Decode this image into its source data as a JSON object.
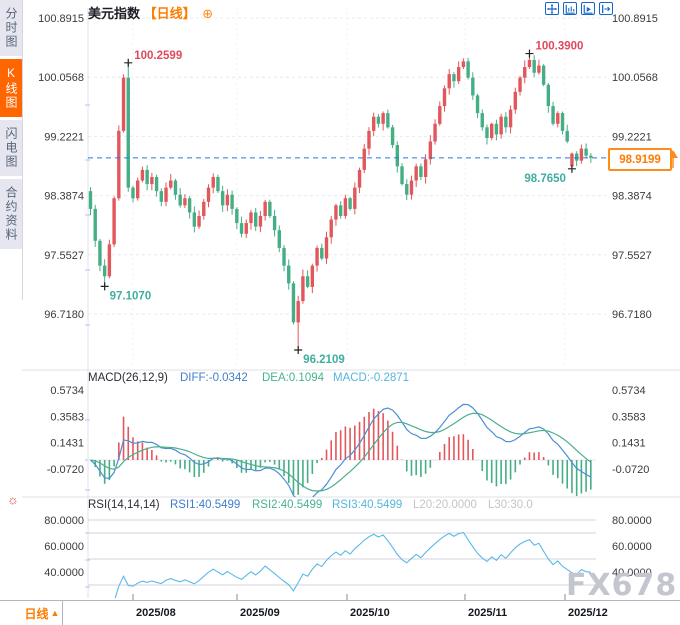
{
  "window": {
    "title": "美元指数",
    "period": "日线"
  },
  "sidebar": {
    "items": [
      {
        "label": "分时图",
        "active": false
      },
      {
        "label": "K线图",
        "active": true
      },
      {
        "label": "闪电图",
        "active": false
      },
      {
        "label": "合约资料",
        "active": false
      }
    ]
  },
  "header": {
    "title": "美元指数",
    "period_tag": "【日线】",
    "plus_icon": "⊕"
  },
  "toolbar": {
    "icons": [
      "move-crosshair-icon",
      "fit-horizontal-icon",
      "auto-scroll-icon",
      "shift-right-icon"
    ]
  },
  "price_box": {
    "value": "98.9199"
  },
  "macd": {
    "name": "MACD(26,12,9)",
    "diff_label": "DIFF:-0.0342",
    "dea_label": "DEA:0.1094",
    "macd_label": "MACD:-0.2871"
  },
  "rsi": {
    "name": "RSI(14,14,14)",
    "rsi1_label": "RSI1:40.5499",
    "rsi2_label": "RSI2:40.5499",
    "rsi3_label": "RSI3:40.5499",
    "l20_label": "L20:20.0000",
    "l30_label": "L30:30.0"
  },
  "bottom": {
    "period_tab": "日线",
    "period_arrow": "▲"
  },
  "watermark": "FX678",
  "colors": {
    "up": "#e2575c",
    "down": "#46ae85",
    "accent_orange": "#ff7a00",
    "diff_blue": "#4a8fd4",
    "dea_green": "#4cae8e",
    "rsi_cyan": "#59b9e8",
    "dashed_line_blue": "#2079e0",
    "annotation_red": "#e0485c",
    "annotation_teal": "#3fae9f"
  },
  "chart_data": {
    "type": "candlestick",
    "title": "美元指数",
    "period": "日线",
    "x_axis": {
      "labels": [
        "2025/08",
        "2025/09",
        "2025/10",
        "2025/11",
        "2025/12"
      ]
    },
    "price_axis": {
      "tick_labels": [
        "100.8915",
        "100.0568",
        "99.2221",
        "98.3874",
        "97.5527",
        "96.7180"
      ],
      "tick_values": [
        100.8915,
        100.0568,
        99.2221,
        98.3874,
        97.5527,
        96.718
      ]
    },
    "last_price": 98.9199,
    "last_price_label": "98.9199",
    "series": {
      "first_open": 98.45,
      "closes": [
        98.2,
        97.75,
        97.4,
        97.25,
        97.7,
        98.35,
        99.3,
        100.05,
        98.5,
        98.35,
        98.6,
        98.75,
        98.55,
        98.65,
        98.45,
        98.3,
        98.5,
        98.6,
        98.4,
        98.25,
        98.35,
        98.15,
        97.95,
        98.1,
        98.3,
        98.5,
        98.65,
        98.45,
        98.25,
        98.4,
        98.2,
        98.0,
        97.85,
        98.0,
        98.15,
        97.95,
        98.1,
        98.3,
        98.1,
        97.9,
        97.65,
        97.4,
        97.15,
        96.6,
        96.9,
        97.25,
        97.1,
        97.4,
        97.65,
        97.5,
        97.8,
        98.05,
        98.25,
        98.1,
        98.35,
        98.2,
        98.5,
        98.75,
        99.05,
        99.3,
        99.5,
        99.4,
        99.55,
        99.35,
        99.1,
        98.8,
        98.55,
        98.4,
        98.6,
        98.8,
        98.65,
        98.9,
        99.15,
        99.4,
        99.65,
        99.9,
        100.1,
        100.0,
        100.2,
        100.28,
        100.05,
        99.8,
        99.55,
        99.35,
        99.2,
        99.4,
        99.25,
        99.5,
        99.35,
        99.6,
        99.85,
        100.05,
        100.2,
        100.3,
        100.12,
        100.22,
        99.95,
        99.65,
        99.4,
        99.55,
        99.3,
        99.15,
        98.98,
        98.88,
        99.05,
        98.95,
        98.92
      ],
      "open_overrides": [
        {
          "i": 102,
          "open": 98.8
        }
      ],
      "wick_overrides": [
        {
          "i": 3,
          "low": 97.107
        },
        {
          "i": 8,
          "high": 100.2599
        },
        {
          "i": 44,
          "low": 96.2109
        },
        {
          "i": 93,
          "high": 100.39
        },
        {
          "i": 102,
          "low": 98.765
        }
      ]
    },
    "annotations": [
      {
        "label": "100.2599",
        "value": 100.2599,
        "index": 8,
        "kind": "high",
        "placement": "above-right"
      },
      {
        "label": "100.3900",
        "value": 100.39,
        "index": 93,
        "kind": "high",
        "placement": "above-right"
      },
      {
        "label": "97.1070",
        "value": 97.107,
        "index": 3,
        "kind": "low",
        "placement": "below-right"
      },
      {
        "label": "96.2109",
        "value": 96.2109,
        "index": 44,
        "kind": "low",
        "placement": "below-right"
      },
      {
        "label": "98.7650",
        "value": 98.765,
        "index": 102,
        "kind": "low",
        "placement": "below-left"
      }
    ],
    "indicators": {
      "macd": {
        "params": [
          26,
          12,
          9
        ],
        "diff": -0.0342,
        "dea": 0.1094,
        "macd": -0.2871,
        "tick_labels": [
          "0.5734",
          "0.3583",
          "0.1431",
          "-0.0720"
        ],
        "tick_values": [
          0.5734,
          0.3583,
          0.1431,
          -0.072
        ]
      },
      "rsi": {
        "params": [
          14,
          14,
          14
        ],
        "rsi1": 40.5499,
        "rsi2": 40.5499,
        "rsi3": 40.5499,
        "l20": 20.0,
        "l30": 30.0,
        "tick_labels": [
          "80.0000",
          "60.0000",
          "40.0000"
        ],
        "tick_values": [
          80,
          60,
          40
        ]
      }
    }
  }
}
